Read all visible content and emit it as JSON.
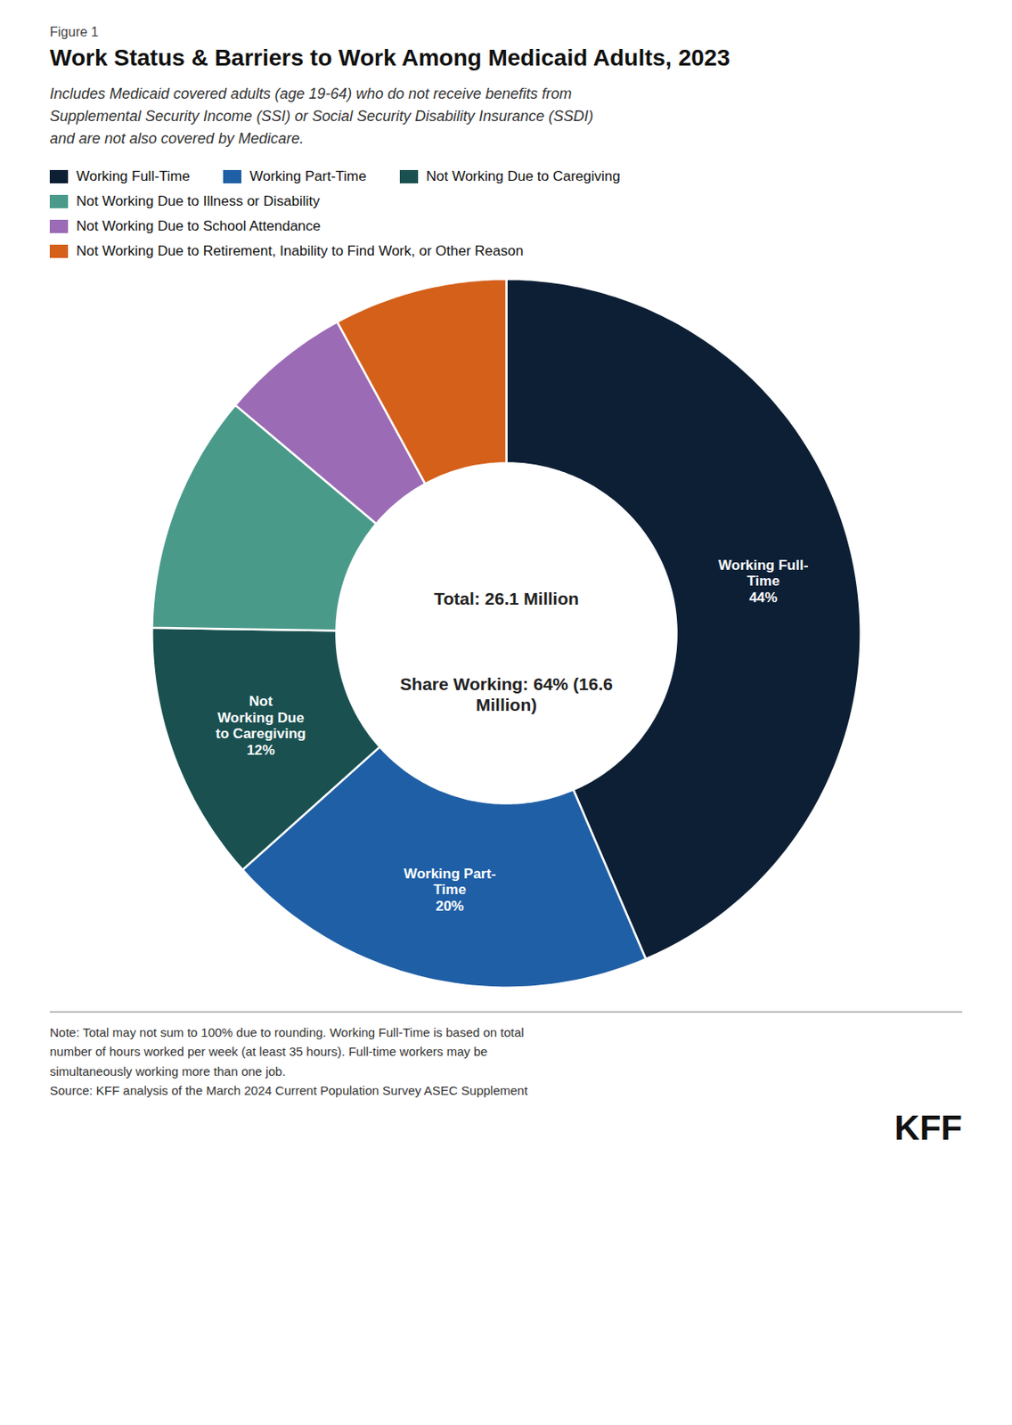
{
  "chart_data": {
    "type": "donut",
    "figure_label": "Figure 1",
    "title": "Work Status & Barriers to Work Among Medicaid Adults, 2023",
    "subtitle": "Includes Medicaid covered adults (age 19-64) who do not receive benefits from\nSupplemental Security Income (SSI) or Social Security Disability Insurance (SSDI)\nand are not also covered by Medicare.",
    "categories": [
      "Working Full-Time",
      "Working Part-Time",
      "Not Working Due to Caregiving",
      "Not Working Due to Illness or Disability",
      "Not Working Due to School Attendance",
      "Not Working Due to Retirement, Inability to Find Work, or Other Reason"
    ],
    "values": [
      44,
      20,
      12,
      11,
      6,
      8
    ],
    "colors": [
      "#0d1f35",
      "#1f5fa6",
      "#1a5050",
      "#4a9a8a",
      "#9b6bb5",
      "#d4601a"
    ],
    "data_labels": true,
    "value_labels": [
      "Working Full-\nTime\n44%",
      "Working Part-\nTime\n20%",
      "Not\nWorking Due\nto Caregiving\n12%",
      null,
      null,
      null
    ],
    "legend": "top",
    "center_text": [
      "Total: 26.1 Million",
      "Share Working: 64% (16.6\nMillion)"
    ],
    "notes": [
      "Note: Total may not sum to 100% due to rounding. Working Full-Time is based on total",
      "number of hours worked per week (at least 35 hours). Full-time workers may be",
      "simultaneously working more than one job.",
      "Source: KFF analysis of the March 2024 Current Population Survey ASEC Supplement"
    ],
    "logo": "KFF"
  }
}
